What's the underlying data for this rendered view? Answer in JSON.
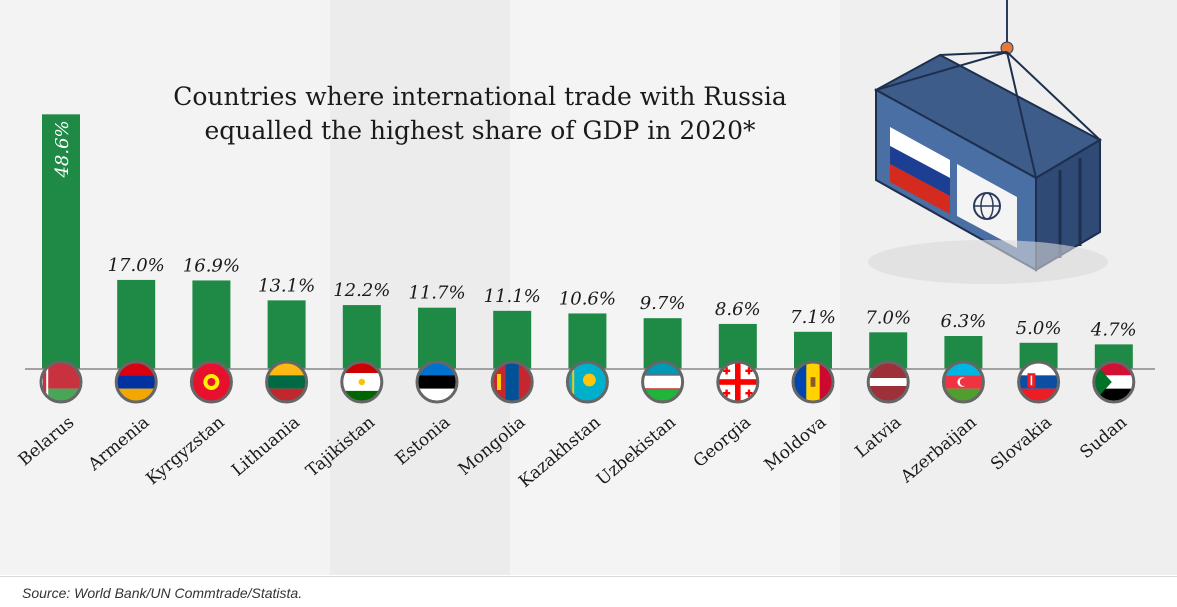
{
  "title_line1": "Countries where international trade with Russia",
  "title_line2": "equalled the highest share of GDP in 2020*",
  "source": "Source: World Bank/UN Commtrade/Statista.",
  "colors": {
    "bar": "#1f8a45",
    "baseline": "#888888",
    "background_panel": "#f2f2f2"
  },
  "chart_data": {
    "type": "bar",
    "title": "Countries where international trade with Russia equalled the highest share of GDP in 2020*",
    "xlabel": "",
    "ylabel": "",
    "unit": "%",
    "ylim": [
      0,
      50
    ],
    "grid": false,
    "categories": [
      "Belarus",
      "Armenia",
      "Kyrgyzstan",
      "Lithuania",
      "Tajikistan",
      "Estonia",
      "Mongolia",
      "Kazakhstan",
      "Uzbekistan",
      "Georgia",
      "Moldova",
      "Latvia",
      "Azerbaijan",
      "Slovakia",
      "Sudan"
    ],
    "values": [
      48.6,
      17.0,
      16.9,
      13.1,
      12.2,
      11.7,
      11.1,
      10.6,
      9.7,
      8.6,
      7.1,
      7.0,
      6.3,
      5.0,
      4.7
    ],
    "labels": [
      "48.6%",
      "17.0%",
      "16.9%",
      "13.1%",
      "12.2%",
      "11.7%",
      "11.1%",
      "10.6%",
      "9.7%",
      "8.6%",
      "7.1%",
      "7.0%",
      "6.3%",
      "5.0%",
      "4.7%"
    ]
  },
  "flags": [
    "belarus-flag-icon",
    "armenia-flag-icon",
    "kyrgyzstan-flag-icon",
    "lithuania-flag-icon",
    "tajikistan-flag-icon",
    "estonia-flag-icon",
    "mongolia-flag-icon",
    "kazakhstan-flag-icon",
    "uzbekistan-flag-icon",
    "georgia-flag-icon",
    "moldova-flag-icon",
    "latvia-flag-icon",
    "azerbaijan-flag-icon",
    "slovakia-flag-icon",
    "sudan-flag-icon"
  ],
  "illustration": {
    "icon": "shipping-container-icon",
    "flags": [
      "russia-flag-icon",
      "globe-icon"
    ]
  }
}
